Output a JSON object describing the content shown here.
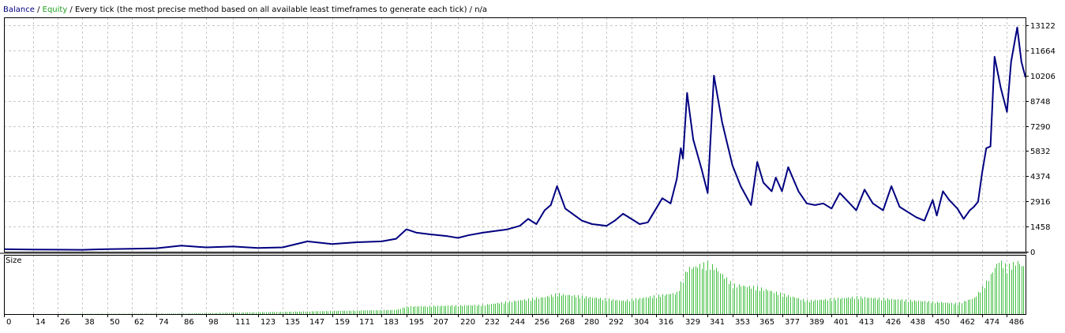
{
  "header": {
    "balance_label": "Balance",
    "sep1": " / ",
    "equity_label": "Equity",
    "rest": " / Every tick (the most precise method based on all available least timeframes to generate each tick) / n/a"
  },
  "colors": {
    "balance": "#000080",
    "equity": "#22a022",
    "volume": "#44c044",
    "grid": "#c8c8c8",
    "frame": "#000000"
  },
  "chart_data": [
    {
      "type": "line",
      "series": [
        {
          "name": "Balance",
          "x": [
            0,
            14,
            26,
            38,
            50,
            62,
            74,
            86,
            98,
            111,
            123,
            135,
            147,
            159,
            171,
            183,
            190,
            195,
            200,
            207,
            215,
            220,
            225,
            232,
            238,
            244,
            250,
            254,
            258,
            262,
            265,
            268,
            272,
            280,
            285,
            292,
            296,
            300,
            304,
            308,
            312,
            316,
            319,
            323,
            326,
            328,
            329,
            331,
            334,
            338,
            341,
            344,
            348,
            353,
            357,
            362,
            365,
            368,
            372,
            374,
            377,
            380,
            385,
            389,
            393,
            397,
            401,
            405,
            409,
            413,
            417,
            421,
            426,
            430,
            434,
            438,
            442,
            446,
            450,
            452,
            455,
            458,
            462,
            465,
            468,
            470,
            472,
            474,
            476,
            478,
            480,
            483,
            486,
            488,
            491,
            493,
            495
          ],
          "values": [
            150,
            130,
            120,
            110,
            150,
            170,
            200,
            350,
            250,
            300,
            220,
            250,
            600,
            450,
            550,
            600,
            750,
            1300,
            1100,
            1000,
            900,
            800,
            950,
            1100,
            1200,
            1300,
            1500,
            1900,
            1600,
            2400,
            2700,
            3800,
            2500,
            1800,
            1600,
            1500,
            1800,
            2200,
            1900,
            1600,
            1700,
            2500,
            3100,
            2800,
            4200,
            6000,
            5400,
            9200,
            6500,
            4800,
            3400,
            10200,
            7500,
            5000,
            3800,
            2700,
            5200,
            4000,
            3500,
            4300,
            3500,
            4900,
            3500,
            2800,
            2700,
            2800,
            2500,
            3400,
            2900,
            2400,
            3600,
            2800,
            2400,
            3800,
            2600,
            2300,
            2000,
            1800,
            3000,
            2100,
            3500,
            3000,
            2500,
            1900,
            2400,
            2600,
            2900,
            4600,
            6000,
            6100,
            11300,
            9500,
            8100,
            11000,
            13000,
            11000,
            10100
          ]
        }
      ],
      "y_ticks": [
        "13122",
        "11664",
        "10206",
        "8748",
        "7290",
        "5832",
        "4374",
        "2916",
        "1458",
        "0"
      ],
      "ylim": [
        0,
        13122
      ],
      "xlim": [
        0,
        495
      ],
      "grid": true
    },
    {
      "type": "bar",
      "title": "Size",
      "x_ticks": [
        "0",
        "14",
        "26",
        "38",
        "50",
        "62",
        "74",
        "86",
        "98",
        "111",
        "123",
        "135",
        "147",
        "159",
        "171",
        "183",
        "195",
        "207",
        "220",
        "232",
        "244",
        "256",
        "268",
        "280",
        "292",
        "304",
        "316",
        "329",
        "341",
        "353",
        "365",
        "377",
        "389",
        "401",
        "413",
        "426",
        "438",
        "450",
        "462",
        "474",
        "486"
      ],
      "x_tick_positions": [
        0,
        14,
        26,
        38,
        50,
        62,
        74,
        86,
        98,
        111,
        123,
        135,
        147,
        159,
        171,
        183,
        195,
        207,
        220,
        232,
        244,
        256,
        268,
        280,
        292,
        304,
        316,
        329,
        341,
        353,
        365,
        377,
        389,
        401,
        413,
        426,
        438,
        450,
        462,
        474,
        486
      ],
      "shape": {
        "x": [
          0,
          86,
          147,
          190,
          195,
          232,
          262,
          268,
          300,
          326,
          331,
          341,
          345,
          353,
          365,
          389,
          413,
          438,
          462,
          470,
          476,
          482,
          486,
          491,
          495
        ],
        "y": [
          0,
          0.01,
          0.05,
          0.08,
          0.14,
          0.17,
          0.32,
          0.38,
          0.25,
          0.4,
          0.85,
          0.95,
          0.85,
          0.55,
          0.5,
          0.25,
          0.32,
          0.26,
          0.2,
          0.3,
          0.6,
          1.0,
          0.88,
          0.98,
          0.85
        ]
      },
      "grid": true
    }
  ]
}
